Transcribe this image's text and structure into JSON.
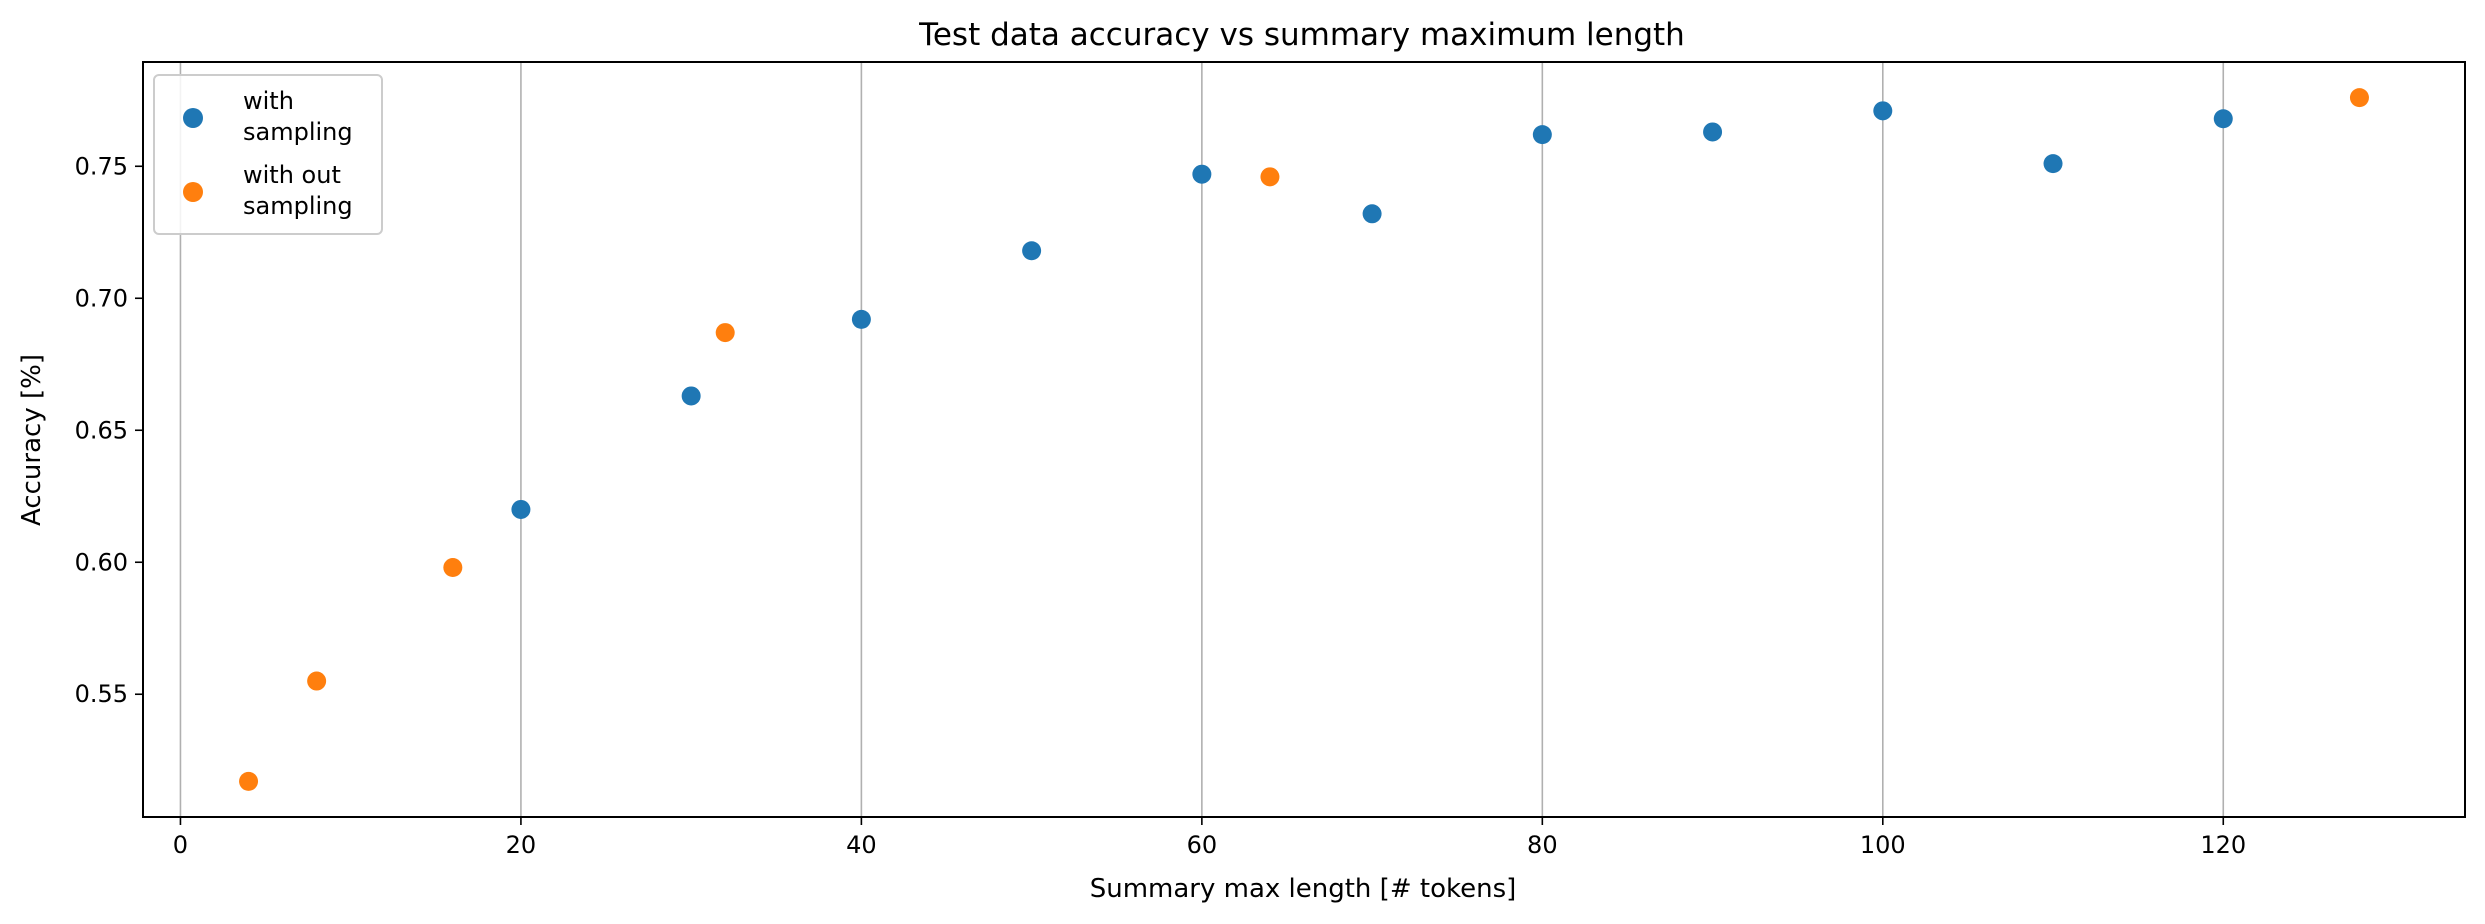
{
  "chart_data": {
    "type": "scatter",
    "title": "Test data accuracy vs summary maximum length",
    "xlabel": "Summary max length [# tokens]",
    "ylabel": "Accuracy [%]",
    "xlim": [
      -2.2,
      134.2
    ],
    "ylim": [
      0.5035,
      0.7895
    ],
    "xticks": [
      0,
      20,
      40,
      60,
      80,
      100,
      120
    ],
    "yticks": [
      0.55,
      0.6,
      0.65,
      0.7,
      0.75
    ],
    "ytick_labels": [
      "0.55",
      "0.60",
      "0.65",
      "0.70",
      "0.75"
    ],
    "grid": "x-axis only",
    "legend_position": "upper-left",
    "series": [
      {
        "name": "with sampling",
        "legend_lines": [
          "with",
          "sampling"
        ],
        "color": "#1f77b4",
        "x": [
          20,
          30,
          40,
          50,
          60,
          70,
          80,
          90,
          100,
          110,
          120
        ],
        "y": [
          0.62,
          0.663,
          0.692,
          0.718,
          0.747,
          0.732,
          0.762,
          0.763,
          0.771,
          0.751,
          0.768
        ]
      },
      {
        "name": "with out sampling",
        "legend_lines": [
          "with out",
          "sampling"
        ],
        "color": "#ff7f0e",
        "x": [
          4,
          8,
          16,
          32,
          64,
          128
        ],
        "y": [
          0.517,
          0.555,
          0.598,
          0.687,
          0.746,
          0.776
        ]
      }
    ]
  }
}
